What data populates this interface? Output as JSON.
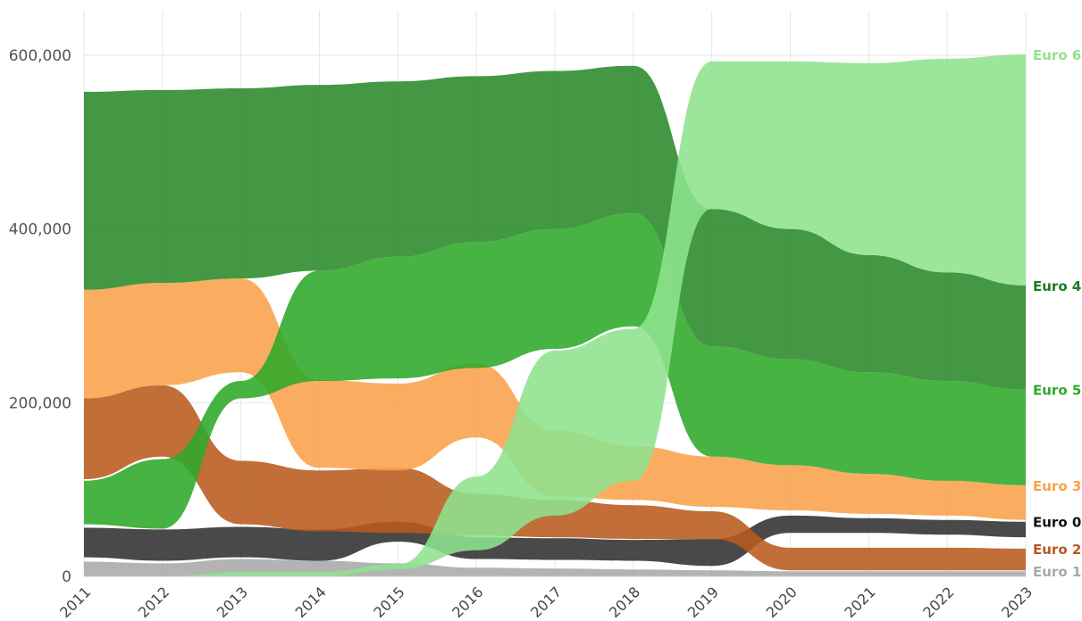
{
  "chart_data": {
    "type": "area",
    "subtype": "stream",
    "title": "",
    "xlabel": "",
    "ylabel": "",
    "x": [
      2011,
      2012,
      2013,
      2014,
      2015,
      2016,
      2017,
      2018,
      2019,
      2020,
      2021,
      2022,
      2023
    ],
    "ylim": [
      0,
      600000
    ],
    "yticks": [
      0,
      200000,
      400000,
      600000
    ],
    "ytick_labels": [
      "0",
      "200,000",
      "400,000",
      "600,000"
    ],
    "grid": true,
    "legend": "right-end labels",
    "series": [
      {
        "name": "Euro 1",
        "color": "#a9a9a9",
        "lower": [
          0,
          0,
          0,
          0,
          0,
          0,
          0,
          0,
          0,
          0,
          0,
          0,
          0
        ],
        "upper": [
          17000,
          15000,
          20000,
          18000,
          15000,
          10000,
          9000,
          8000,
          7000,
          6000,
          6000,
          6000,
          6000
        ]
      },
      {
        "name": "Euro 0",
        "color": "#303030",
        "lower": [
          22000,
          18000,
          22000,
          18000,
          40000,
          20000,
          19000,
          18000,
          12000,
          50000,
          50000,
          48000,
          45000
        ],
        "upper": [
          56000,
          54000,
          57000,
          54000,
          63000,
          45000,
          44000,
          42000,
          43000,
          70000,
          67000,
          65000,
          63000
        ]
      },
      {
        "name": "Euro 2",
        "color": "#b85a1e",
        "lower": [
          112000,
          138000,
          60000,
          52000,
          50000,
          47000,
          45000,
          43000,
          43000,
          7000,
          7000,
          7000,
          7000
        ],
        "upper": [
          205000,
          220000,
          133000,
          122000,
          125000,
          95000,
          88000,
          82000,
          75000,
          33000,
          33000,
          33000,
          32000
        ]
      },
      {
        "name": "Euro 3",
        "color": "#f9a24a",
        "lower": [
          205000,
          220000,
          235000,
          125000,
          122000,
          160000,
          92000,
          88000,
          80000,
          76000,
          72000,
          70000,
          65000
        ],
        "upper": [
          330000,
          338000,
          343000,
          226000,
          222000,
          245000,
          168000,
          150000,
          138000,
          128000,
          118000,
          110000,
          105000
        ]
      },
      {
        "name": "Euro 5",
        "color": "#2ea829",
        "lower": [
          60000,
          55000,
          205000,
          225000,
          228000,
          240000,
          262000,
          288000,
          138000,
          128000,
          118000,
          110000,
          105000
        ],
        "upper": [
          110000,
          135000,
          225000,
          352000,
          368000,
          385000,
          400000,
          418000,
          265000,
          250000,
          235000,
          225000,
          215000
        ]
      },
      {
        "name": "Euro 4",
        "color": "#2a8a29",
        "lower": [
          330000,
          338000,
          343000,
          352000,
          368000,
          385000,
          400000,
          418000,
          265000,
          250000,
          235000,
          225000,
          215000
        ],
        "upper": [
          558000,
          560000,
          562000,
          566000,
          570000,
          576000,
          582000,
          588000,
          423000,
          400000,
          370000,
          350000,
          335000
        ]
      },
      {
        "name": "Euro 6",
        "color": "#8ee28e",
        "lower": [
          0,
          0,
          0,
          0,
          8000,
          30000,
          70000,
          110000,
          423000,
          400000,
          370000,
          350000,
          335000
        ],
        "upper": [
          0,
          0,
          5000,
          5000,
          14000,
          115000,
          260000,
          285000,
          593000,
          593000,
          591000,
          596000,
          601000
        ]
      }
    ],
    "end_labels": [
      {
        "name": "Euro 6",
        "color": "#8ee28e",
        "value": 601000
      },
      {
        "name": "Euro 4",
        "color": "#1e7a1e",
        "value": 335000
      },
      {
        "name": "Euro 5",
        "color": "#2ea829",
        "value": 215000
      },
      {
        "name": "Euro 3",
        "color": "#f9a24a",
        "value": 105000
      },
      {
        "name": "Euro 0",
        "color": "#111111",
        "value": 63000
      },
      {
        "name": "Euro 2",
        "color": "#b85a1e",
        "value": 32000
      },
      {
        "name": "Euro 1",
        "color": "#a9a9a9",
        "value": 6000
      }
    ]
  }
}
